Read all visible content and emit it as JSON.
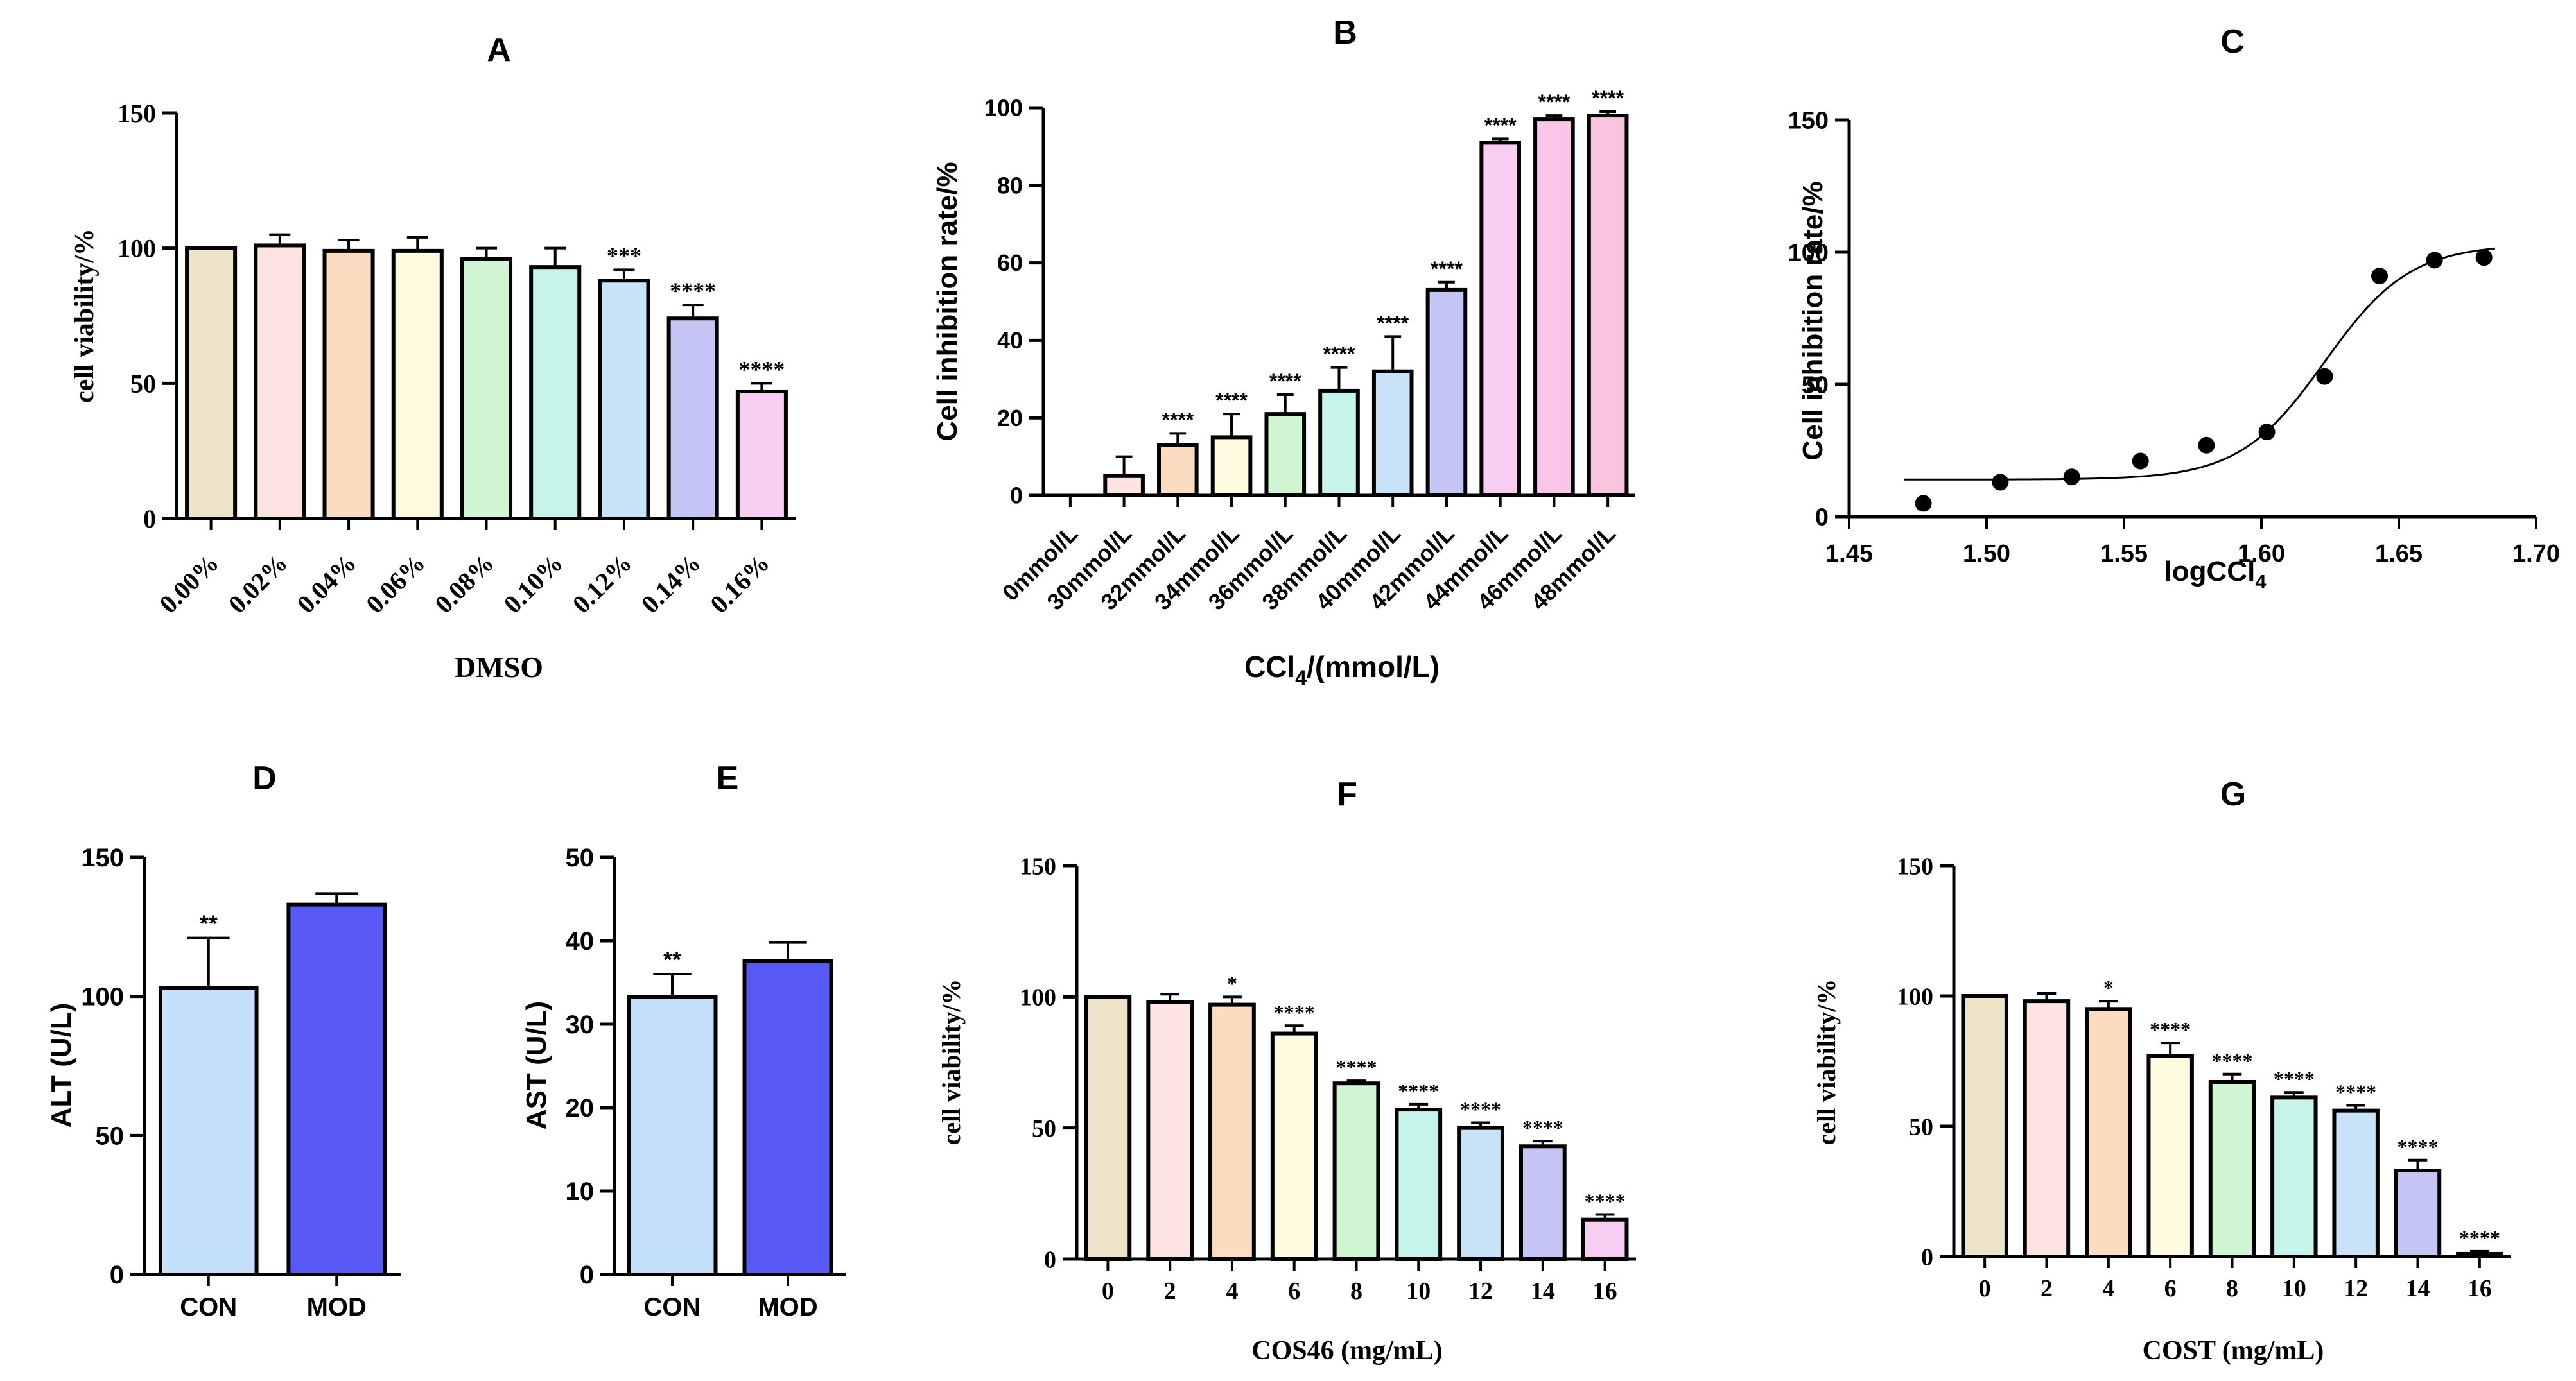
{
  "panels": [
    {
      "id": "A",
      "letter": "A",
      "type": "bar",
      "xlabel": "DMSO",
      "xlabel_sub": "",
      "xlabel_tail": "",
      "ylabel": "cell viability/%",
      "ylim": [
        0,
        150
      ],
      "yticks": [
        "0",
        "50",
        "100",
        "150"
      ],
      "ytick_values": [
        0,
        50,
        100,
        150
      ],
      "categories": [
        "0.00%",
        "0.02%",
        "0.04%",
        "0.06%",
        "0.08%",
        "0.10%",
        "0.12%",
        "0.14%",
        "0.16%"
      ],
      "values": [
        100,
        101,
        99,
        99,
        96,
        93,
        88,
        74,
        47
      ],
      "errors": [
        0,
        4,
        4,
        5,
        4,
        7,
        4,
        5,
        3
      ],
      "significance": [
        "",
        "",
        "",
        "",
        "",
        "",
        "***",
        "****",
        "****"
      ],
      "colors": [
        "#ece3c9",
        "#fde3e1",
        "#fcdcc0",
        "#fefbe0",
        "#cff5d3",
        "#c6f4ea",
        "#c8e3f8",
        "#c4c5f5",
        "#f7cdf2"
      ]
    },
    {
      "id": "B",
      "letter": "B",
      "type": "bar",
      "xlabel": "CCl",
      "xlabel_sub": "4",
      "xlabel_tail": "/(mmol/L)",
      "ylabel": "Cell inhibition rate/%",
      "ylim": [
        0,
        100
      ],
      "yticks": [
        "0",
        "20",
        "40",
        "60",
        "80",
        "100"
      ],
      "ytick_values": [
        0,
        20,
        40,
        60,
        80,
        100
      ],
      "categories": [
        "0mmol/L",
        "30mmol/L",
        "32mmol/L",
        "34mmol/L",
        "36mmol/L",
        "38mmol/L",
        "40mmol/L",
        "42mmol/L",
        "44mmol/L",
        "46mmol/L",
        "48mmol/L"
      ],
      "values": [
        0,
        5,
        13,
        15,
        21,
        27,
        32,
        53,
        91,
        97,
        98
      ],
      "errors": [
        0,
        5,
        3,
        6,
        5,
        6,
        9,
        2,
        1,
        1,
        1
      ],
      "significance": [
        "",
        "",
        "****",
        "****",
        "****",
        "****",
        "****",
        "****",
        "****",
        "****",
        "****"
      ],
      "colors": [
        "#fde9e9",
        "#fde3e1",
        "#fcdcc0",
        "#fefbe0",
        "#cff5d3",
        "#c6f4ea",
        "#c8e3f8",
        "#c4c5f5",
        "#f7cdf2",
        "#f9c5e8",
        "#f9c5de"
      ]
    },
    {
      "id": "C",
      "letter": "C",
      "type": "scatter",
      "xlabel": "logCCl",
      "xlabel_sub": "4",
      "xlabel_tail": "",
      "ylabel": "Cell inhibition rate/%",
      "xlim": [
        1.45,
        1.7
      ],
      "xticks": [
        "1.45",
        "1.50",
        "1.55",
        "1.60",
        "1.65",
        "1.70"
      ],
      "xtick_values": [
        1.45,
        1.5,
        1.55,
        1.6,
        1.65,
        1.7
      ],
      "ylim": [
        0,
        150
      ],
      "yticks": [
        "0",
        "50",
        "100",
        "150"
      ],
      "ytick_values": [
        0,
        50,
        100,
        150
      ],
      "points": [
        {
          "x": 1.477,
          "y": 5
        },
        {
          "x": 1.505,
          "y": 13
        },
        {
          "x": 1.531,
          "y": 15
        },
        {
          "x": 1.556,
          "y": 21
        },
        {
          "x": 1.58,
          "y": 27
        },
        {
          "x": 1.602,
          "y": 32
        },
        {
          "x": 1.623,
          "y": 53
        },
        {
          "x": 1.643,
          "y": 91
        },
        {
          "x": 1.663,
          "y": 97
        },
        {
          "x": 1.681,
          "y": 98
        }
      ],
      "fit": {
        "bottom": 14,
        "top": 103,
        "log_ec50": 1.623,
        "hill_slope": 28,
        "x_range": [
          1.47,
          1.685
        ]
      }
    },
    {
      "id": "D",
      "letter": "D",
      "type": "bar",
      "xlabel": "",
      "xlabel_sub": "",
      "xlabel_tail": "",
      "ylabel": "ALT (U/L)",
      "ylim": [
        0,
        150
      ],
      "yticks": [
        "0",
        "50",
        "100",
        "150"
      ],
      "ytick_values": [
        0,
        50,
        100,
        150
      ],
      "categories": [
        "CON",
        "MOD"
      ],
      "values": [
        103,
        133
      ],
      "errors": [
        18,
        4
      ],
      "significance": [
        "**",
        ""
      ],
      "colors": [
        "#c5e0fb",
        "#5858f5"
      ]
    },
    {
      "id": "E",
      "letter": "E",
      "type": "bar",
      "xlabel": "",
      "xlabel_sub": "",
      "xlabel_tail": "",
      "ylabel": "AST (U/L)",
      "ylim": [
        0,
        50
      ],
      "yticks": [
        "0",
        "10",
        "20",
        "30",
        "40",
        "50"
      ],
      "ytick_values": [
        0,
        10,
        20,
        30,
        40,
        50
      ],
      "categories": [
        "CON",
        "MOD"
      ],
      "values": [
        33.3,
        37.6
      ],
      "errors": [
        2.7,
        2.2
      ],
      "significance": [
        "**",
        ""
      ],
      "colors": [
        "#c5e0fb",
        "#5858f5"
      ]
    },
    {
      "id": "F",
      "letter": "F",
      "type": "bar",
      "xlabel": "COS46 (mg/mL)",
      "xlabel_sub": "",
      "xlabel_tail": "",
      "ylabel": "cell viability/%",
      "ylim": [
        0,
        150
      ],
      "yticks": [
        "0",
        "50",
        "100",
        "150"
      ],
      "ytick_values": [
        0,
        50,
        100,
        150
      ],
      "categories": [
        "0",
        "2",
        "4",
        "6",
        "8",
        "10",
        "12",
        "14",
        "16"
      ],
      "values": [
        100,
        98,
        97,
        86,
        67,
        57,
        50,
        43,
        15
      ],
      "errors": [
        0,
        3,
        3,
        3,
        1,
        2,
        2,
        2,
        2
      ],
      "significance": [
        "",
        "",
        "*",
        "****",
        "****",
        "****",
        "****",
        "****",
        "****"
      ],
      "colors": [
        "#ece3c9",
        "#fde3e1",
        "#fcdcc0",
        "#fefbe0",
        "#cff5d3",
        "#c6f4ea",
        "#c8e3f8",
        "#c4c5f5",
        "#f7cdf2"
      ]
    },
    {
      "id": "G",
      "letter": "G",
      "type": "bar",
      "xlabel": "COST (mg/mL)",
      "xlabel_sub": "",
      "xlabel_tail": "",
      "ylabel": "cell viability/%",
      "ylim": [
        0,
        150
      ],
      "yticks": [
        "0",
        "50",
        "100",
        "150"
      ],
      "ytick_values": [
        0,
        50,
        100,
        150
      ],
      "categories": [
        "0",
        "2",
        "4",
        "6",
        "8",
        "10",
        "12",
        "14",
        "16"
      ],
      "values": [
        100,
        98,
        95,
        77,
        67,
        61,
        56,
        33,
        1
      ],
      "errors": [
        0,
        3,
        3,
        5,
        3,
        2,
        2,
        4,
        1
      ],
      "significance": [
        "",
        "",
        "*",
        "****",
        "****",
        "****",
        "****",
        "****",
        "****"
      ],
      "colors": [
        "#ece3c9",
        "#fde3e1",
        "#fcdcc0",
        "#fefbe0",
        "#cff5d3",
        "#c6f4ea",
        "#c8e3f8",
        "#c4c5f5",
        "#f7cdf2"
      ]
    }
  ],
  "chart_data": [
    {
      "type": "bar",
      "title": "A",
      "xlabel": "DMSO",
      "ylabel": "cell viability/%",
      "ylim": [
        0,
        150
      ],
      "categories": [
        "0.00%",
        "0.02%",
        "0.04%",
        "0.06%",
        "0.08%",
        "0.10%",
        "0.12%",
        "0.14%",
        "0.16%"
      ],
      "values": [
        100,
        101,
        99,
        99,
        96,
        93,
        88,
        74,
        47
      ]
    },
    {
      "type": "bar",
      "title": "B",
      "xlabel": "CCl4/(mmol/L)",
      "ylabel": "Cell inhibition rate/%",
      "ylim": [
        0,
        100
      ],
      "categories": [
        "0mmol/L",
        "30mmol/L",
        "32mmol/L",
        "34mmol/L",
        "36mmol/L",
        "38mmol/L",
        "40mmol/L",
        "42mmol/L",
        "44mmol/L",
        "46mmol/L",
        "48mmol/L"
      ],
      "values": [
        0,
        5,
        13,
        15,
        21,
        27,
        32,
        53,
        91,
        97,
        98
      ]
    },
    {
      "type": "scatter",
      "title": "C",
      "xlabel": "logCCl4",
      "ylabel": "Cell inhibition rate/%",
      "xlim": [
        1.45,
        1.7
      ],
      "ylim": [
        0,
        150
      ],
      "x": [
        1.477,
        1.505,
        1.531,
        1.556,
        1.58,
        1.602,
        1.623,
        1.643,
        1.663,
        1.681
      ],
      "y": [
        5,
        13,
        15,
        21,
        27,
        32,
        53,
        91,
        97,
        98
      ]
    },
    {
      "type": "bar",
      "title": "D",
      "xlabel": "",
      "ylabel": "ALT (U/L)",
      "ylim": [
        0,
        150
      ],
      "categories": [
        "CON",
        "MOD"
      ],
      "values": [
        103,
        133
      ]
    },
    {
      "type": "bar",
      "title": "E",
      "xlabel": "",
      "ylabel": "AST (U/L)",
      "ylim": [
        0,
        50
      ],
      "categories": [
        "CON",
        "MOD"
      ],
      "values": [
        33.3,
        37.6
      ]
    },
    {
      "type": "bar",
      "title": "F",
      "xlabel": "COS46 (mg/mL)",
      "ylabel": "cell viability/%",
      "ylim": [
        0,
        150
      ],
      "categories": [
        "0",
        "2",
        "4",
        "6",
        "8",
        "10",
        "12",
        "14",
        "16"
      ],
      "values": [
        100,
        98,
        97,
        86,
        67,
        57,
        50,
        43,
        15
      ]
    },
    {
      "type": "bar",
      "title": "G",
      "xlabel": "COST (mg/mL)",
      "ylabel": "cell viability/%",
      "ylim": [
        0,
        150
      ],
      "categories": [
        "0",
        "2",
        "4",
        "6",
        "8",
        "10",
        "12",
        "14",
        "16"
      ],
      "values": [
        100,
        98,
        95,
        77,
        67,
        61,
        56,
        33,
        1
      ]
    }
  ]
}
